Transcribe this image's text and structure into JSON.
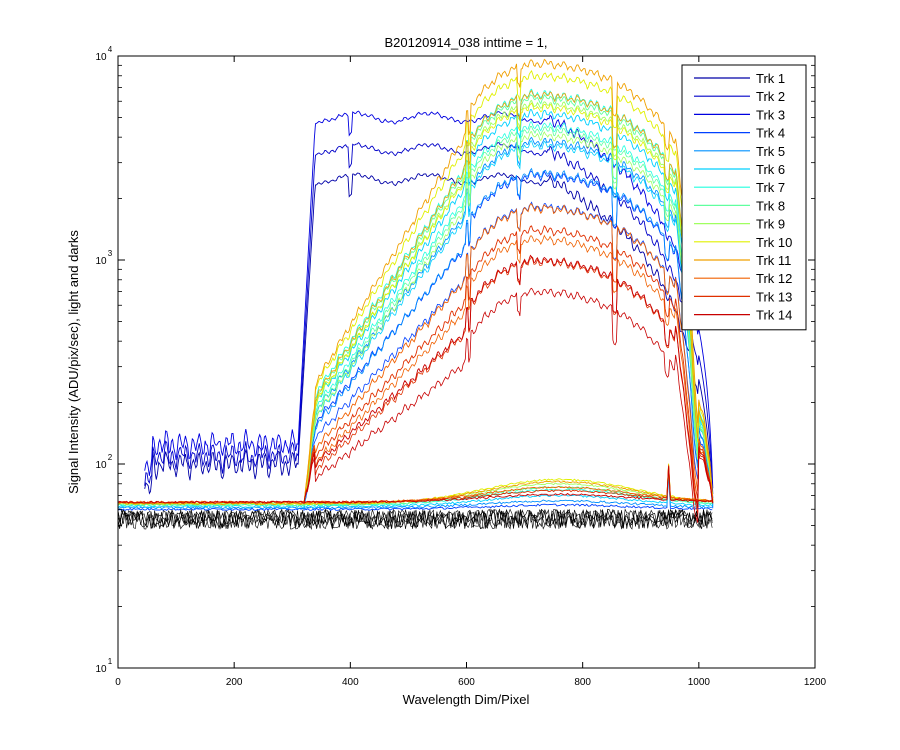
{
  "chart_data": {
    "type": "line",
    "title": "B20120914_038 inttime = 1,",
    "xlabel": "Wavelength Dim/Pixel",
    "ylabel": "Signal Intensity (ADU/pix/sec), light and darks",
    "xlim": [
      0,
      1200
    ],
    "ylim": [
      10,
      10000
    ],
    "yscale": "log",
    "x_ticks": [
      0,
      200,
      400,
      600,
      800,
      1000,
      1200
    ],
    "x_tick_labels": [
      "0",
      "200",
      "400",
      "600",
      "800",
      "1000",
      "1200"
    ],
    "y_ticks": [
      10,
      100,
      1000,
      10000
    ],
    "y_tick_labels": [
      {
        "base": "10",
        "exp": "1"
      },
      {
        "base": "10",
        "exp": "2"
      },
      {
        "base": "10",
        "exp": "3"
      },
      {
        "base": "10",
        "exp": "4"
      }
    ],
    "legend_position": "top-right",
    "series": [
      {
        "name": "Trk 1",
        "color": "#0000a8",
        "profile": "blocked",
        "level": 2500,
        "pre": 100
      },
      {
        "name": "Trk 2",
        "color": "#0000c8",
        "profile": "blocked",
        "level": 3500,
        "pre": 110
      },
      {
        "name": "Trk 3",
        "color": "#0000e0",
        "profile": "blocked",
        "level": 5000,
        "pre": 125
      },
      {
        "name": "Trk 4",
        "color": "#0040ff",
        "profile": "dome",
        "peak": 2600,
        "tail": 160,
        "dark": 60,
        "bump": 3
      },
      {
        "name": "Trk 5",
        "color": "#0090ff",
        "profile": "dome",
        "peak": 3800,
        "tail": 180,
        "dark": 61,
        "bump": 5
      },
      {
        "name": "Trk 6",
        "color": "#00d0ff",
        "profile": "dome",
        "peak": 5200,
        "tail": 200,
        "dark": 62,
        "bump": 8
      },
      {
        "name": "Trk 7",
        "color": "#20ffdf",
        "profile": "dome",
        "peak": 6500,
        "tail": 220,
        "dark": 63,
        "bump": 12
      },
      {
        "name": "Trk 8",
        "color": "#60ff9f",
        "profile": "dome",
        "peak": 6200,
        "tail": 210,
        "dark": 63,
        "bump": 14
      },
      {
        "name": "Trk 9",
        "color": "#a0ff60",
        "profile": "dome",
        "peak": 5800,
        "tail": 200,
        "dark": 64,
        "bump": 16
      },
      {
        "name": "Trk 10",
        "color": "#e0f000",
        "profile": "dome",
        "peak": 8000,
        "tail": 240,
        "dark": 64,
        "bump": 20
      },
      {
        "name": "Trk 11",
        "color": "#f0a000",
        "profile": "dome",
        "peak": 9200,
        "tail": 250,
        "dark": 64,
        "bump": 18
      },
      {
        "name": "Trk 12",
        "color": "#f06000",
        "profile": "dome",
        "peak": 1800,
        "tail": 120,
        "dark": 65,
        "bump": 12
      },
      {
        "name": "Trk 13",
        "color": "#e03000",
        "profile": "dome",
        "peak": 1400,
        "tail": 110,
        "dark": 65,
        "bump": 9
      },
      {
        "name": "Trk 14",
        "color": "#c80000",
        "profile": "dome",
        "peak": 1000,
        "tail": 100,
        "dark": 65,
        "bump": 6
      }
    ],
    "darks": {
      "color": "#000000",
      "low": 48,
      "high": 60,
      "x_end": 1025
    }
  }
}
